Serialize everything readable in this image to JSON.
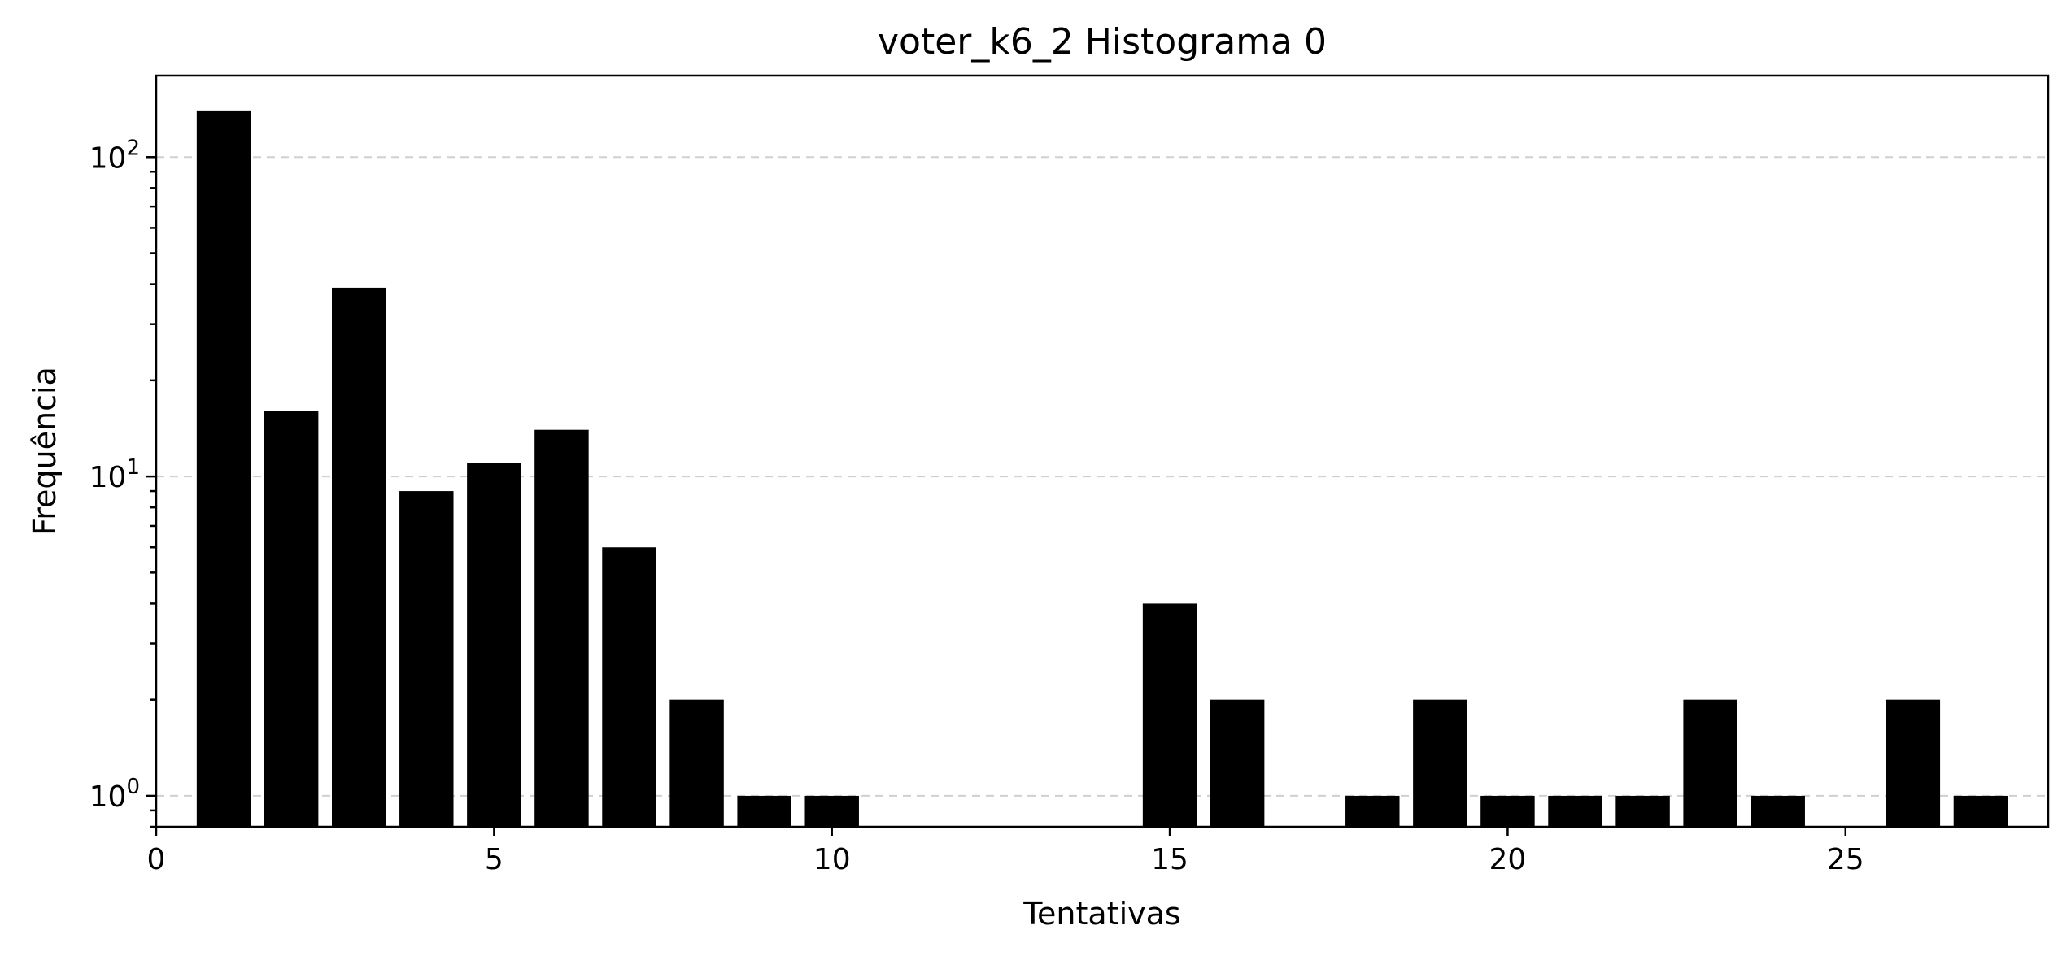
{
  "chart_data": {
    "type": "bar",
    "title": "voter_k6_2 Histograma 0",
    "xlabel": "Tentativas",
    "ylabel": "Frequência",
    "yscale": "log",
    "xlim": [
      0,
      28
    ],
    "ylim": [
      0.8,
      180
    ],
    "grid": "y-major-dashed",
    "x": [
      1,
      2,
      3,
      4,
      5,
      6,
      7,
      8,
      9,
      10,
      15,
      16,
      18,
      19,
      20,
      21,
      22,
      23,
      24,
      26,
      27
    ],
    "values": [
      140,
      16,
      39,
      9,
      11,
      14,
      6,
      2,
      1,
      1,
      4,
      2,
      1,
      2,
      1,
      1,
      1,
      2,
      1,
      2,
      1
    ],
    "bar_color": "#000000",
    "x_ticks": [
      0,
      5,
      10,
      15,
      20,
      25
    ],
    "y_ticks": [
      {
        "value": 1,
        "base": "10",
        "exp": "0"
      },
      {
        "value": 10,
        "base": "10",
        "exp": "1"
      },
      {
        "value": 100,
        "base": "10",
        "exp": "2"
      }
    ]
  }
}
